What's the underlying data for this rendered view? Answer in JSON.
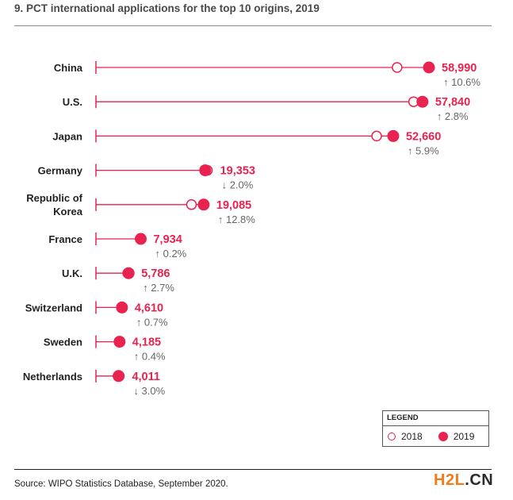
{
  "title": "9. PCT international applications for the top 10 origins, 2019",
  "source": "Source: WIPO Statistics Database, September 2020.",
  "watermark": {
    "part1": "H2L",
    "part2": ".CN"
  },
  "legend": {
    "heading": "LEGEND",
    "open_label": "2018",
    "filled_label": "2019"
  },
  "colors": {
    "accent": "#e8234f",
    "label": "#231f20",
    "change": "#666666"
  },
  "chart_data": {
    "type": "dot-plot",
    "title": "9. PCT international applications for the top 10 origins, 2019",
    "xlabel": "",
    "ylabel": "",
    "xlim": [
      0,
      60000
    ],
    "grid": false,
    "legend_position": "bottom-right",
    "series": [
      {
        "name": "2018",
        "marker": "open-circle"
      },
      {
        "name": "2019",
        "marker": "filled-circle"
      }
    ],
    "categories": [
      [
        "China"
      ],
      [
        "U.S."
      ],
      [
        "Japan"
      ],
      [
        "Germany"
      ],
      [
        "Republic of",
        "Korea"
      ],
      [
        "France"
      ],
      [
        "U.K."
      ],
      [
        "Switzerland"
      ],
      [
        "Sweden"
      ],
      [
        "Netherlands"
      ]
    ],
    "values_2019": [
      58990,
      57840,
      52660,
      19353,
      19085,
      7934,
      5786,
      4610,
      4185,
      4011
    ],
    "values_2018": [
      53345,
      56265,
      49726,
      19748,
      16919,
      7918,
      5634,
      4578,
      4168,
      4135
    ],
    "value_labels": [
      "58,990",
      "57,840",
      "52,660",
      "19,353",
      "19,085",
      "7,934",
      "5,786",
      "4,610",
      "4,185",
      "4,011"
    ],
    "change_labels": [
      "↑ 10.6%",
      "↑ 2.8%",
      "↑ 5.9%",
      "↓ 2.0%",
      "↑ 12.8%",
      "↑ 0.2%",
      "↑ 2.7%",
      "↑ 0.7%",
      "↑ 0.4%",
      "↓ 3.0%"
    ]
  }
}
